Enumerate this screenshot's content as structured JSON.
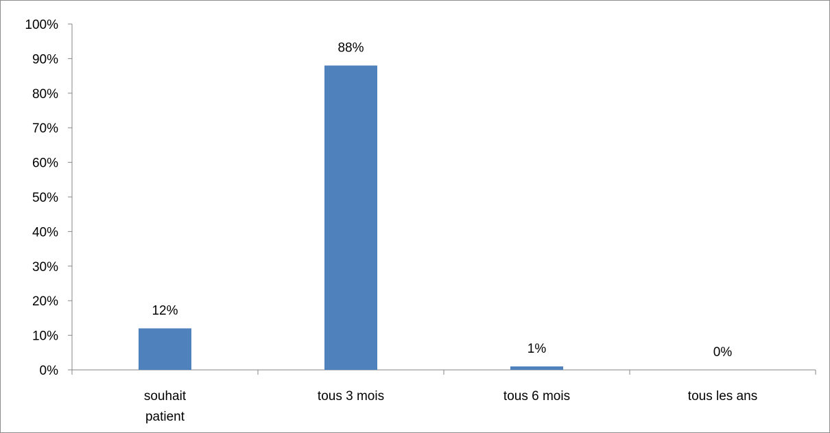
{
  "chart_data": {
    "type": "bar",
    "categories": [
      [
        "souhait",
        "patient"
      ],
      [
        "tous 3 mois"
      ],
      [
        "tous 6 mois"
      ],
      [
        "tous les ans"
      ]
    ],
    "values": [
      12,
      88,
      1,
      0
    ],
    "value_labels": [
      "12%",
      "88%",
      "1%",
      "0%"
    ],
    "y_ticks": [
      "0%",
      "10%",
      "20%",
      "30%",
      "40%",
      "50%",
      "60%",
      "70%",
      "80%",
      "90%",
      "100%"
    ],
    "ylim": [
      0,
      100
    ],
    "title": "",
    "xlabel": "",
    "ylabel": "",
    "grid": false,
    "legend": "none",
    "bar_color": "#4f81bd",
    "axis_color": "#868686"
  }
}
